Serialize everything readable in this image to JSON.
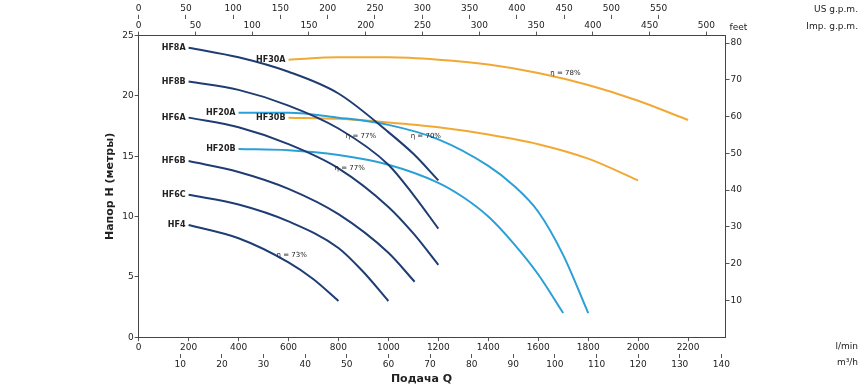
{
  "chart_data": {
    "type": "line",
    "xlabel": "Подача Q",
    "ylabel": "Напор H (метры)",
    "grid": false,
    "xlim": [
      0,
      2350
    ],
    "xticks": [
      0,
      200,
      400,
      600,
      800,
      1000,
      1200,
      1400,
      1600,
      1800,
      2000,
      2200
    ],
    "xunit": "l/min",
    "x2lim": [
      0,
      141
    ],
    "x2ticks": [
      10,
      20,
      30,
      40,
      50,
      60,
      70,
      80,
      90,
      100,
      110,
      120,
      130,
      140
    ],
    "x2label": "m³/h",
    "x3lim": [
      0,
      620.8
    ],
    "x3ticks": [
      0,
      50,
      100,
      150,
      200,
      250,
      300,
      350,
      400,
      450,
      500,
      550
    ],
    "x3label": "US g.p.m.",
    "x4lim": [
      0,
      516.9
    ],
    "x4ticks": [
      0,
      50,
      100,
      150,
      200,
      250,
      300,
      350,
      400,
      450,
      500
    ],
    "x4label": "Imp. g.p.m.",
    "ylim": [
      0,
      25
    ],
    "yticks": [
      0,
      5,
      10,
      15,
      20,
      25
    ],
    "y2lim": [
      0,
      82.02
    ],
    "y2ticks": [
      10,
      20,
      30,
      40,
      50,
      60,
      70,
      80
    ],
    "y2label": "feet",
    "series": [
      {
        "name": "HF8A",
        "color": "#1f3d73",
        "x": [
          200,
          400,
          600,
          800,
          1000,
          1100,
          1200
        ],
        "values": [
          24,
          23.2,
          22,
          20.2,
          17,
          15.2,
          13
        ]
      },
      {
        "name": "HF8B",
        "color": "#1f3d73",
        "x": [
          200,
          400,
          600,
          800,
          1000,
          1100,
          1200
        ],
        "values": [
          21.2,
          20.5,
          19.2,
          17.3,
          14.3,
          11.8,
          9
        ]
      },
      {
        "name": "HF6A",
        "color": "#1f3d73",
        "x": [
          200,
          400,
          600,
          800,
          1000,
          1100,
          1200
        ],
        "values": [
          18.2,
          17.4,
          16,
          14,
          10.8,
          8.6,
          6
        ]
      },
      {
        "name": "HF6B",
        "color": "#1f3d73",
        "x": [
          200,
          400,
          600,
          800,
          1000,
          1105
        ],
        "values": [
          14.6,
          13.7,
          12.3,
          10.2,
          7,
          4.6
        ]
      },
      {
        "name": "HF6C",
        "color": "#1f3d73",
        "x": [
          200,
          400,
          600,
          800,
          900,
          1000
        ],
        "values": [
          11.8,
          11,
          9.6,
          7.4,
          5.4,
          3
        ]
      },
      {
        "name": "HF4",
        "color": "#1f3d73",
        "x": [
          200,
          400,
          600,
          700,
          800
        ],
        "values": [
          9.3,
          8.2,
          6.2,
          4.8,
          3
        ]
      },
      {
        "name": "HF20A",
        "color": "#2b9fd8",
        "x": [
          400,
          600,
          800,
          1000,
          1200,
          1400,
          1500,
          1600,
          1700,
          1800
        ],
        "values": [
          18.6,
          18.6,
          18.2,
          17.6,
          16.4,
          14.2,
          12.6,
          10.4,
          6.8,
          2
        ]
      },
      {
        "name": "HF20B",
        "color": "#2b9fd8",
        "x": [
          400,
          600,
          800,
          1000,
          1200,
          1300,
          1400,
          1500,
          1600,
          1700
        ],
        "values": [
          15.6,
          15.5,
          15.1,
          14.3,
          12.8,
          11.6,
          10,
          7.8,
          5.2,
          2
        ]
      },
      {
        "name": "HF30A",
        "color": "#f2a934",
        "x": [
          600,
          800,
          1000,
          1200,
          1400,
          1600,
          1800,
          2000,
          2200
        ],
        "values": [
          23,
          23.2,
          23.2,
          23,
          22.6,
          21.9,
          20.9,
          19.6,
          18
        ]
      },
      {
        "name": "HF30B",
        "color": "#f2a934",
        "x": [
          600,
          800,
          1000,
          1200,
          1400,
          1600,
          1800,
          2000
        ],
        "values": [
          18.2,
          18.1,
          17.8,
          17.4,
          16.8,
          16,
          14.8,
          13
        ]
      }
    ],
    "annotations": [
      {
        "text": "η = 78%",
        "x": 1709,
        "y": 21.9
      },
      {
        "text": "η = 77%",
        "x": 890,
        "y": 16.7
      },
      {
        "text": "η = 70%",
        "x": 1150,
        "y": 16.7
      },
      {
        "text": "η = 77%",
        "x": 845,
        "y": 14
      },
      {
        "text": "η = 73%",
        "x": 613,
        "y": 6.8
      }
    ]
  }
}
